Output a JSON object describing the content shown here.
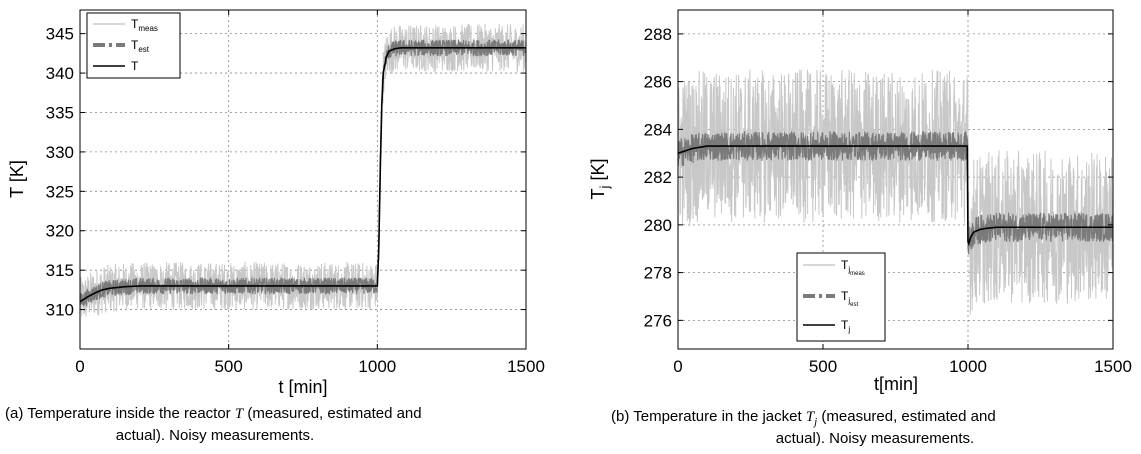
{
  "chart_data": [
    {
      "type": "line",
      "xlabel": "t [min]",
      "ylabel": "T [K]",
      "xlim": [
        0,
        1500
      ],
      "ylim": [
        305,
        348
      ],
      "xticks": [
        0,
        500,
        1000,
        1500
      ],
      "yticks": [
        310,
        315,
        320,
        325,
        330,
        335,
        340,
        345
      ],
      "grid": true,
      "legend_position": "top-left",
      "series": [
        {
          "name": "T",
          "name_sub": "meas",
          "color": "#c8c8c8",
          "style": "noisy-band",
          "noise_amplitude": 3.0
        },
        {
          "name": "T",
          "name_sub": "est",
          "color": "#7a7a7a",
          "style": "dash-dot-band",
          "noise_amplitude": 1.0
        },
        {
          "name": "T",
          "name_sub": "",
          "color": "#000000",
          "style": "solid",
          "x": [
            0,
            25,
            50,
            75,
            100,
            150,
            200,
            300,
            500,
            700,
            900,
            1000,
            1005,
            1010,
            1015,
            1020,
            1030,
            1040,
            1060,
            1080,
            1100,
            1200,
            1300,
            1400,
            1500
          ],
          "y": [
            311,
            311.6,
            312.1,
            312.5,
            312.7,
            312.9,
            313,
            313,
            313,
            313,
            313,
            313,
            318,
            328,
            336,
            340,
            342,
            342.8,
            343.1,
            343.2,
            343.2,
            343.2,
            343.2,
            343.2,
            343.2
          ]
        }
      ],
      "caption": "(a) Temperature inside the reactor 𝑇 (measured, estimated and actual). Noisy measurements."
    },
    {
      "type": "line",
      "xlabel": "t[min]",
      "ylabel": "T",
      "ylabel_sub": "j",
      "ylabel_unit": " [K]",
      "xlim": [
        0,
        1500
      ],
      "ylim": [
        274.8,
        289
      ],
      "xticks": [
        0,
        500,
        1000,
        1500
      ],
      "yticks": [
        276,
        278,
        280,
        282,
        284,
        286,
        288
      ],
      "grid": true,
      "legend_position": "bottom-center",
      "series": [
        {
          "name": "T",
          "name_sub": "j",
          "name_subsub": "meas",
          "color": "#c8c8c8",
          "style": "noisy-band",
          "noise_amplitude": 3.2
        },
        {
          "name": "T",
          "name_sub": "j",
          "name_subsub": "est",
          "color": "#7a7a7a",
          "style": "dash-dot-band",
          "noise_amplitude": 0.6
        },
        {
          "name": "T",
          "name_sub": "j",
          "name_subsub": "",
          "color": "#000000",
          "style": "solid",
          "x": [
            0,
            25,
            50,
            100,
            150,
            200,
            300,
            500,
            700,
            900,
            999,
            1000,
            1002,
            1005,
            1010,
            1020,
            1040,
            1060,
            1100,
            1200,
            1300,
            1400,
            1500
          ],
          "y": [
            283,
            283.1,
            283.2,
            283.3,
            283.3,
            283.3,
            283.3,
            283.3,
            283.3,
            283.3,
            283.3,
            279.3,
            279.2,
            279.3,
            279.5,
            279.7,
            279.8,
            279.85,
            279.9,
            279.9,
            279.9,
            279.9,
            279.9
          ]
        }
      ],
      "caption": "(b) Temperature in the jacket 𝑇𝑗 (measured, estimated and actual). Noisy measurements."
    }
  ]
}
